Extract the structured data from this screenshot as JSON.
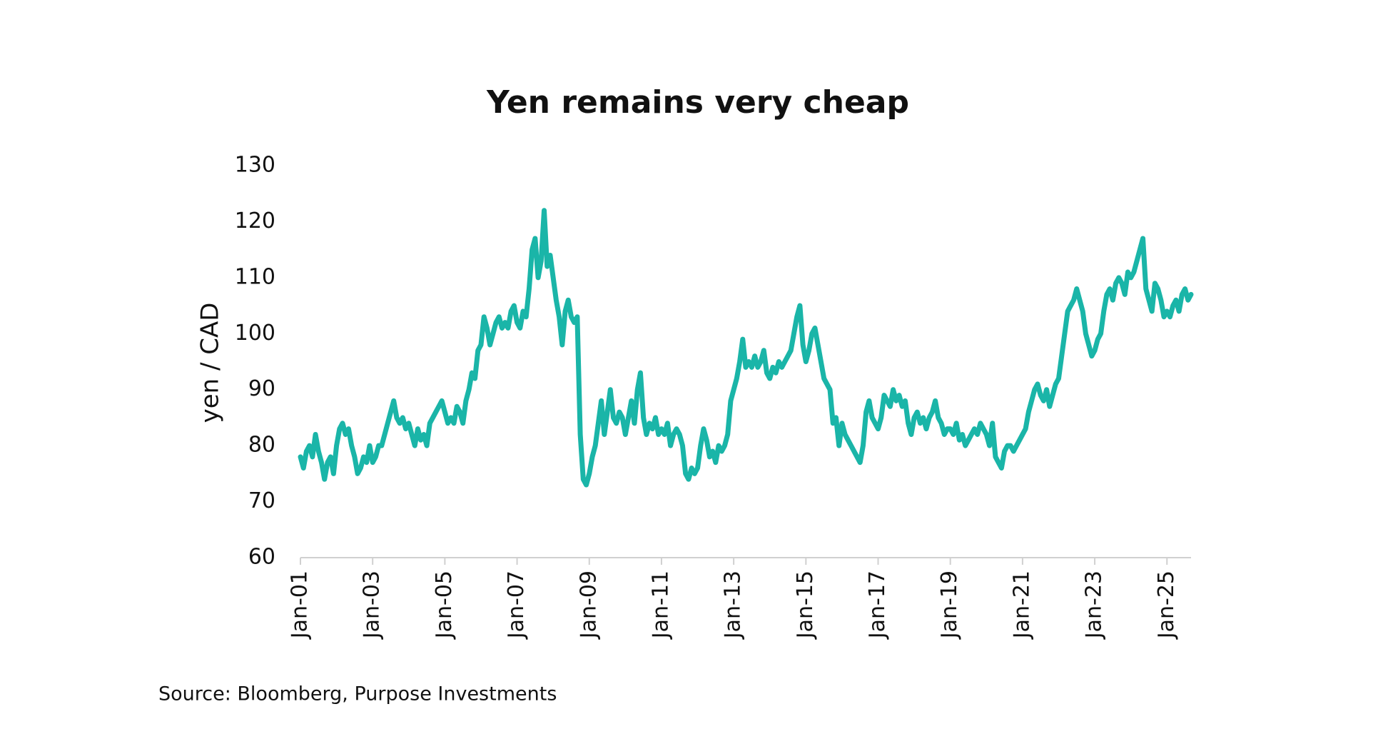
{
  "chart_data": {
    "type": "line",
    "title": "Yen remains very cheap",
    "y_label": "yen / CAD",
    "source": "Source: Bloomberg, Purpose Investments",
    "color": "#1ab5a8",
    "ylim": [
      60,
      130
    ],
    "yticks": [
      60,
      70,
      80,
      90,
      100,
      110,
      120,
      130
    ],
    "grid": false,
    "categories": [
      "Jan-01",
      null,
      null,
      null,
      null,
      null,
      null,
      null,
      null,
      null,
      null,
      null,
      null,
      null,
      null,
      null,
      null,
      null,
      null,
      null,
      null,
      null,
      null,
      null,
      "Jan-03",
      null,
      null,
      null,
      null,
      null,
      null,
      null,
      null,
      null,
      null,
      null,
      null,
      null,
      null,
      null,
      null,
      null,
      null,
      null,
      null,
      null,
      null,
      null,
      "Jan-05",
      null,
      null,
      null,
      null,
      null,
      null,
      null,
      null,
      null,
      null,
      null,
      null,
      null,
      null,
      null,
      null,
      null,
      null,
      null,
      null,
      null,
      null,
      null,
      "Jan-07",
      null,
      null,
      null,
      null,
      null,
      null,
      null,
      null,
      null,
      null,
      null,
      null,
      null,
      null,
      null,
      null,
      null,
      null,
      null,
      null,
      null,
      null,
      null,
      "Jan-09",
      null,
      null,
      null,
      null,
      null,
      null,
      null,
      null,
      null,
      null,
      null,
      null,
      null,
      null,
      null,
      null,
      null,
      null,
      null,
      null,
      null,
      null,
      null,
      "Jan-11",
      null,
      null,
      null,
      null,
      null,
      null,
      null,
      null,
      null,
      null,
      null,
      null,
      null,
      null,
      null,
      null,
      null,
      null,
      null,
      null,
      null,
      null,
      null,
      "Jan-13",
      null,
      null,
      null,
      null,
      null,
      null,
      null,
      null,
      null,
      null,
      null,
      null,
      null,
      null,
      null,
      null,
      null,
      null,
      null,
      null,
      null,
      null,
      null,
      "Jan-15",
      null,
      null,
      null,
      null,
      null,
      null,
      null,
      null,
      null,
      null,
      null,
      null,
      null,
      null,
      null,
      null,
      null,
      null,
      null,
      null,
      null,
      null,
      null,
      "Jan-17",
      null,
      null,
      null,
      null,
      null,
      null,
      null,
      null,
      null,
      null,
      null,
      null,
      null,
      null,
      null,
      null,
      null,
      null,
      null,
      null,
      null,
      null,
      null,
      "Jan-19",
      null,
      null,
      null,
      null,
      null,
      null,
      null,
      null,
      null,
      null,
      null,
      null,
      null,
      null,
      null,
      null,
      null,
      null,
      null,
      null,
      null,
      null,
      null,
      "Jan-21",
      null,
      null,
      null,
      null,
      null,
      null,
      null,
      null,
      null,
      null,
      null,
      null,
      null,
      null,
      null,
      null,
      null,
      null,
      null,
      null,
      null,
      null,
      null,
      "Jan-23",
      null,
      null,
      null,
      null,
      null,
      null,
      null,
      null,
      null,
      null,
      null,
      null,
      null,
      null,
      null,
      null,
      null,
      null,
      null,
      null,
      null,
      null,
      null,
      "Jan-25",
      null,
      null,
      null,
      null,
      null,
      null,
      null,
      null
    ],
    "values": [
      78,
      76,
      79,
      80,
      78,
      82,
      79,
      77,
      74,
      77,
      78,
      75,
      80,
      83,
      84,
      82,
      83,
      80,
      78,
      75,
      76,
      78,
      77,
      80,
      77,
      78,
      80,
      80,
      82,
      84,
      86,
      88,
      85,
      84,
      85,
      83,
      84,
      82,
      80,
      83,
      81,
      82,
      80,
      84,
      85,
      86,
      87,
      88,
      86,
      84,
      85,
      84,
      87,
      86,
      84,
      88,
      90,
      93,
      92,
      97,
      98,
      103,
      101,
      98,
      100,
      102,
      103,
      101,
      102,
      101,
      104,
      105,
      102,
      101,
      104,
      103,
      108,
      115,
      117,
      110,
      113,
      122,
      112,
      114,
      110,
      106,
      103,
      98,
      104,
      106,
      103,
      102,
      103,
      82,
      74,
      73,
      75,
      78,
      80,
      84,
      88,
      82,
      86,
      90,
      85,
      84,
      86,
      85,
      82,
      85,
      88,
      84,
      90,
      93,
      85,
      82,
      84,
      83,
      85,
      82,
      83,
      82,
      84,
      80,
      82,
      83,
      82,
      80,
      75,
      74,
      76,
      75,
      76,
      80,
      83,
      81,
      78,
      79,
      77,
      80,
      79,
      80,
      82,
      88,
      90,
      92,
      95,
      99,
      94,
      95,
      94,
      96,
      94,
      95,
      97,
      93,
      92,
      94,
      93,
      95,
      94,
      95,
      96,
      97,
      100,
      103,
      105,
      98,
      95,
      97,
      100,
      101,
      98,
      95,
      92,
      91,
      90,
      84,
      85,
      80,
      84,
      82,
      81,
      80,
      79,
      78,
      77,
      80,
      86,
      88,
      85,
      84,
      83,
      85,
      89,
      88,
      87,
      90,
      88,
      89,
      87,
      88,
      84,
      82,
      85,
      86,
      84,
      85,
      83,
      85,
      86,
      88,
      85,
      84,
      82,
      83,
      83,
      82,
      84,
      81,
      82,
      80,
      81,
      82,
      83,
      82,
      84,
      83,
      82,
      80,
      84,
      78,
      77,
      76,
      79,
      80,
      80,
      79,
      80,
      81,
      82,
      83,
      86,
      88,
      90,
      91,
      89,
      88,
      90,
      87,
      89,
      91,
      92,
      96,
      100,
      104,
      105,
      106,
      108,
      106,
      104,
      100,
      98,
      96,
      97,
      99,
      100,
      104,
      107,
      108,
      106,
      109,
      110,
      109,
      107,
      111,
      110,
      111,
      113,
      115,
      117,
      108,
      106,
      104,
      109,
      108,
      106,
      103,
      104,
      103,
      105,
      106,
      104,
      107,
      108,
      106,
      107
    ]
  }
}
